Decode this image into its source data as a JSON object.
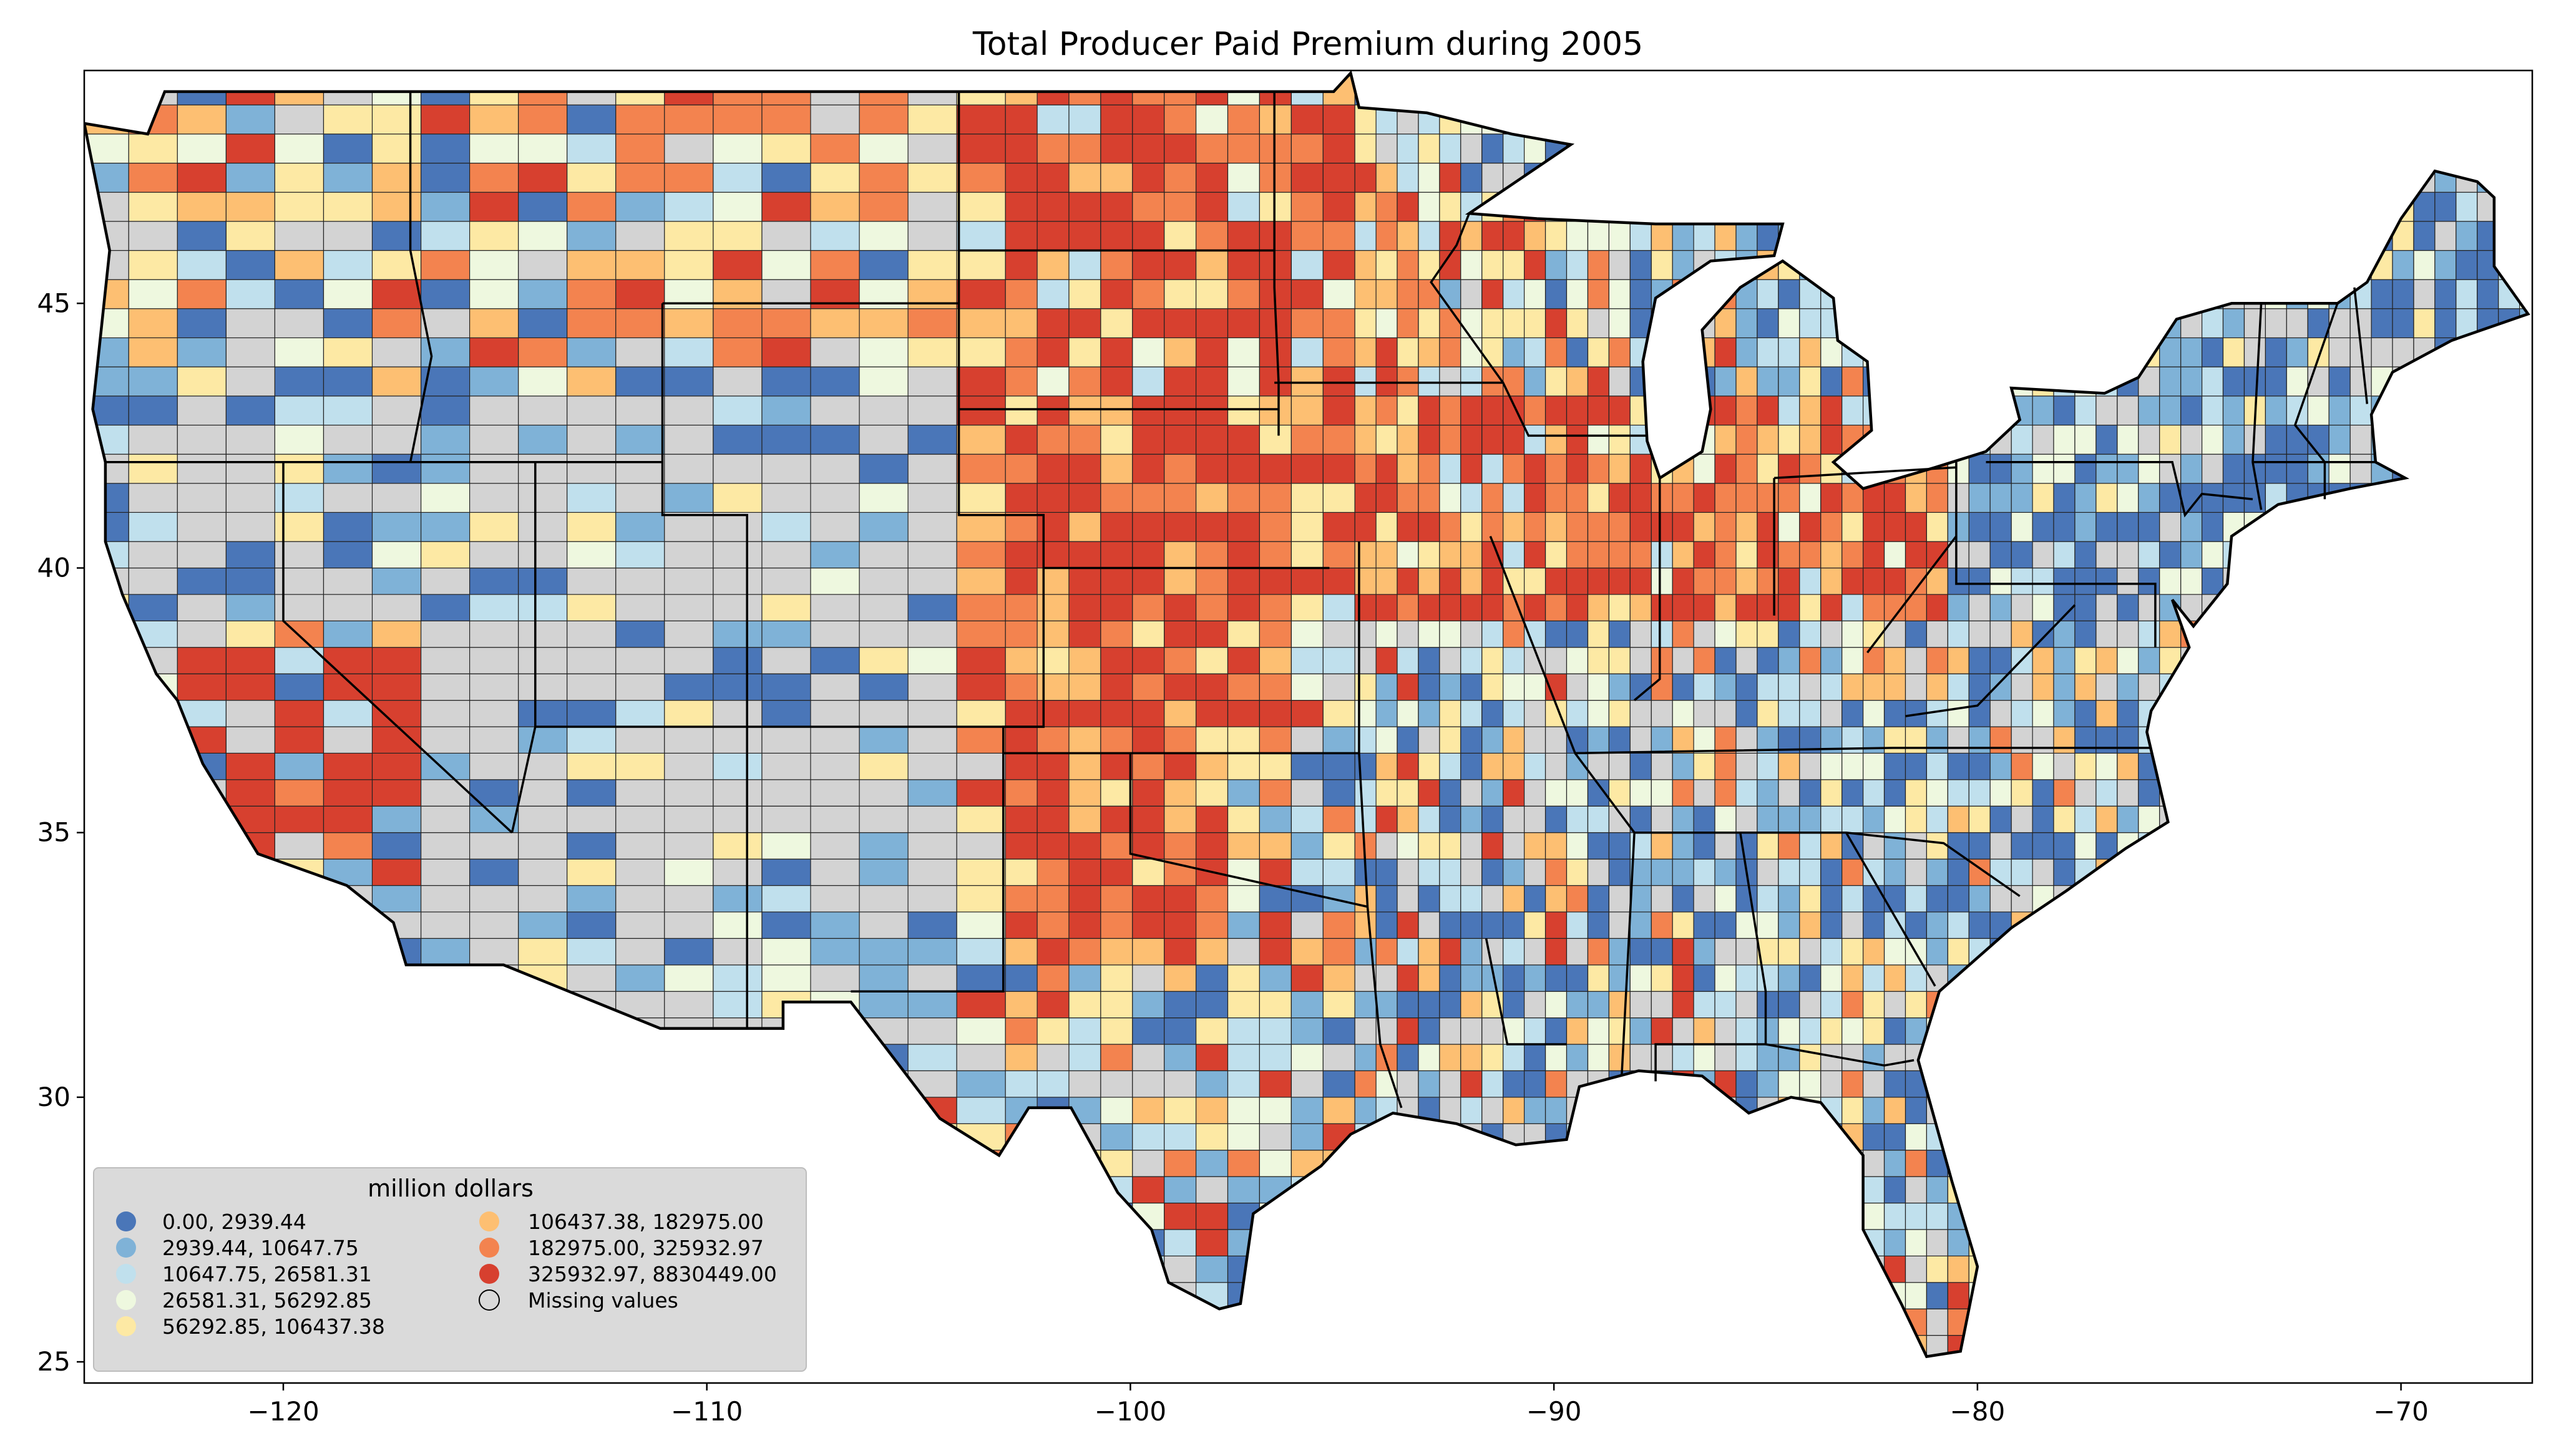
{
  "figure": {
    "title": "Total Producer Paid Premium during 2005"
  },
  "map": {
    "region": "Contiguous United States (county level)",
    "x_ticks": [
      -120,
      -110,
      -100,
      -90,
      -80,
      -70
    ],
    "y_ticks": [
      25,
      30,
      35,
      40,
      45
    ],
    "x_tick_labels": [
      "−120",
      "−110",
      "−100",
      "−90",
      "−80",
      "−70"
    ],
    "y_tick_labels": [
      "25",
      "30",
      "35",
      "40",
      "45"
    ],
    "xlim": [
      -124.7,
      -66.9
    ],
    "ylim": [
      24.6,
      49.4
    ]
  },
  "legend": {
    "title": "million dollars",
    "placement": "lower-left",
    "entries": [
      {
        "label": "0.00,    2939.44",
        "color": "#4a76b8"
      },
      {
        "label": "2939.44,   10647.75",
        "color": "#7fb2d7"
      },
      {
        "label": "10647.75,   26581.31",
        "color": "#c0e0ed"
      },
      {
        "label": "26581.31,   56292.85",
        "color": "#eef8df"
      },
      {
        "label": "56292.85,  106437.38",
        "color": "#fde9a4"
      },
      {
        "label": "106437.38,  182975.00",
        "color": "#fdbf72"
      },
      {
        "label": "182975.00,  325932.97",
        "color": "#f3834f"
      },
      {
        "label": "325932.97, 8830449.00",
        "color": "#d7402f"
      },
      {
        "label": "Missing values",
        "color": "#d3d3d3"
      }
    ]
  }
}
